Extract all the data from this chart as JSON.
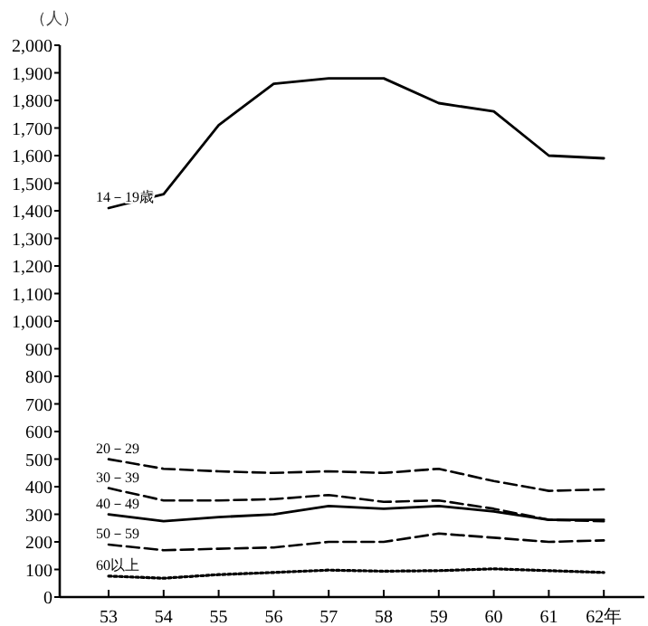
{
  "chart_data": {
    "type": "line",
    "ylabel": "（人）",
    "categories": [
      "53",
      "54",
      "55",
      "56",
      "57",
      "58",
      "59",
      "60",
      "61",
      "62年"
    ],
    "ylim": [
      0,
      2000
    ],
    "yticks": [
      0,
      100,
      200,
      300,
      400,
      500,
      600,
      700,
      800,
      900,
      {
        "value": 1000,
        "label": "1,000"
      },
      {
        "value": 1100,
        "label": "1,100"
      },
      {
        "value": 1200,
        "label": "1,200"
      },
      {
        "value": 1300,
        "label": "1,300"
      },
      {
        "value": 1400,
        "label": "1,400"
      },
      {
        "value": 1500,
        "label": "1,500"
      },
      {
        "value": 1600,
        "label": "1,600"
      },
      {
        "value": 1700,
        "label": "1,700"
      },
      {
        "value": 1800,
        "label": "1,800"
      },
      {
        "value": 1900,
        "label": "1,900"
      },
      {
        "value": 2000,
        "label": "2,000"
      }
    ],
    "series": [
      {
        "name": "14－19歳",
        "color": "#000000",
        "line_style": "solid",
        "values": [
          1410,
          1460,
          1710,
          1860,
          1880,
          1880,
          1790,
          1760,
          1600,
          1590
        ]
      },
      {
        "name": "20－29",
        "color": "#000000",
        "line_style": "dashed",
        "values": [
          500,
          465,
          456,
          450,
          456,
          450,
          465,
          420,
          385,
          390
        ]
      },
      {
        "name": "30－39",
        "color": "#000000",
        "line_style": "dashed",
        "values": [
          395,
          350,
          350,
          355,
          370,
          345,
          350,
          320,
          280,
          275
        ]
      },
      {
        "name": "40－49",
        "color": "#000000",
        "line_style": "solid",
        "values": [
          300,
          275,
          290,
          300,
          330,
          320,
          330,
          310,
          280,
          280
        ]
      },
      {
        "name": "50－59",
        "color": "#000000",
        "line_style": "dashed",
        "values": [
          190,
          170,
          175,
          180,
          200,
          200,
          230,
          215,
          200,
          205
        ]
      },
      {
        "name": "60以上",
        "color": "#000000",
        "line_style": "dotted",
        "values": [
          76,
          68,
          81,
          89,
          98,
          94,
          96,
          102,
          96,
          89
        ]
      }
    ]
  }
}
